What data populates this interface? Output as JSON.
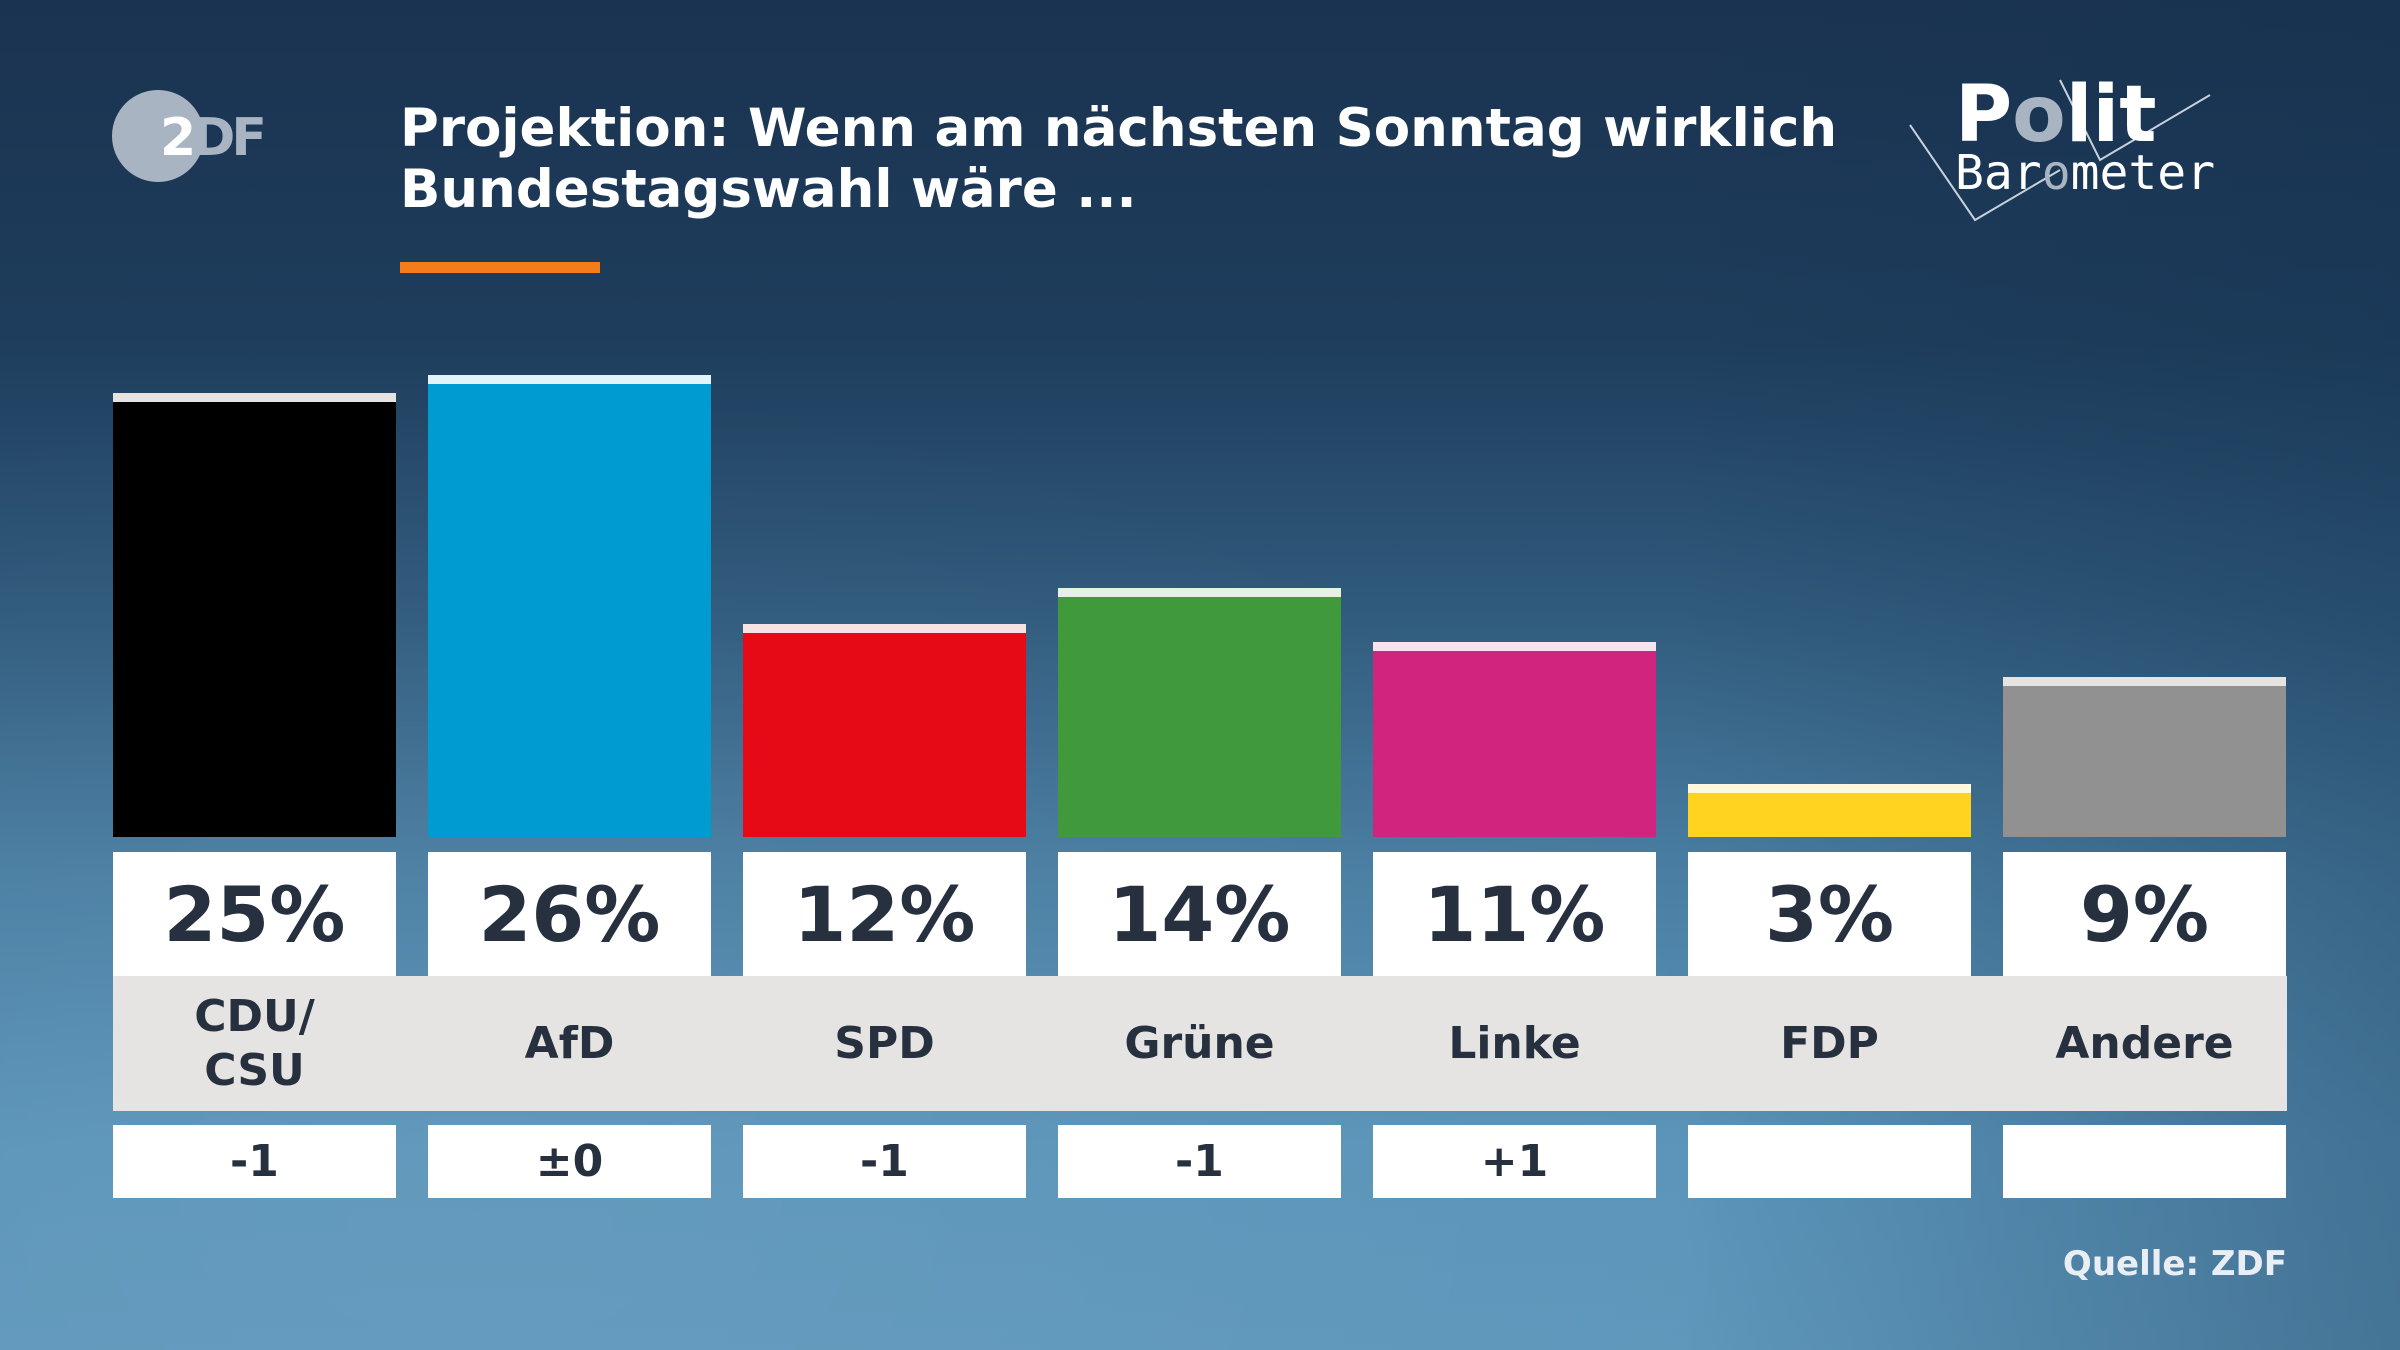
{
  "header": {
    "logo": "ZDF",
    "title_line1": "Projektion: Wenn am nächsten Sonntag wirklich",
    "title_line2": "Bundestagswahl wäre ...",
    "brand_logo": "Polit Barometer",
    "accent_color": "#f47c1b"
  },
  "chart_data": {
    "type": "bar",
    "title": "Projektion: Wenn am nächsten Sonntag wirklich Bundestagswahl wäre ...",
    "categories": [
      "CDU/ CSU",
      "AfD",
      "SPD",
      "Grüne",
      "Linke",
      "FDP",
      "Andere"
    ],
    "values": [
      25,
      26,
      12,
      14,
      11,
      3,
      9
    ],
    "value_labels": [
      "25%",
      "26%",
      "12%",
      "14%",
      "11%",
      "3%",
      "9%"
    ],
    "changes": [
      "-1",
      "±0",
      "-1",
      "-1",
      "+1",
      "",
      ""
    ],
    "colors": [
      "#000000",
      "#009bd0",
      "#e60a17",
      "#409a3c",
      "#d1247f",
      "#ffd31f",
      "#919191"
    ],
    "cap_colors": [
      "#e6e4e2",
      "#e3f3fa",
      "#f7e3e3",
      "#e3f2e3",
      "#f7e3ee",
      "#fff8dc",
      "#e6e4e2"
    ],
    "unit": "%",
    "grid": false
  },
  "footer": {
    "source": "Quelle: ZDF"
  }
}
